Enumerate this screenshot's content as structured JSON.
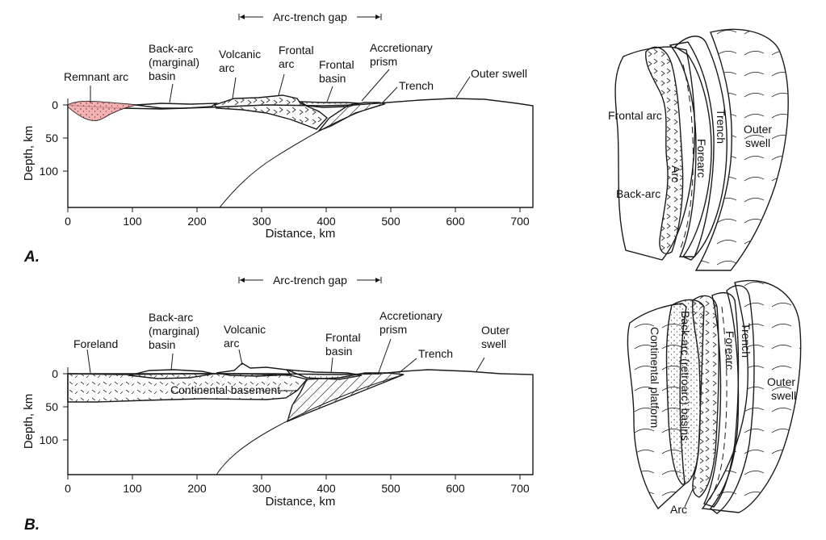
{
  "colors": {
    "mantle": "#1fcf2e",
    "arc": "#f2585e",
    "sediment": "#f5e84a",
    "wedge": "#f0a830",
    "remnant": "#f5a3a6",
    "basement": "#f08ae8",
    "backarc_plan": "#f5f06a",
    "outer_plan": "#b9f07a",
    "trench_plan": "#b87a32",
    "platform_plan": "#c9f25a"
  },
  "panelA": {
    "letter": "A.",
    "gap_label": "Arc-trench gap",
    "y_axis_title": "Depth, km",
    "x_axis_title": "Distance, km",
    "y_ticks": [
      "0",
      "50",
      "100"
    ],
    "x_ticks": [
      "0",
      "100",
      "200",
      "300",
      "400",
      "500",
      "600",
      "700"
    ],
    "labels": {
      "remnant": "Remnant arc",
      "backarc_1": "Back-arc",
      "backarc_2": "(marginal)",
      "backarc_3": "basin",
      "volcanic_1": "Volcanic",
      "volcanic_2": "arc",
      "frontal_arc_1": "Frontal",
      "frontal_arc_2": "arc",
      "frontal_basin_1": "Frontal",
      "frontal_basin_2": "basin",
      "accretionary_1": "Accretionary",
      "accretionary_2": "prism",
      "trench": "Trench",
      "outer_swell": "Outer swell"
    }
  },
  "panelB": {
    "letter": "B.",
    "gap_label": "Arc-trench gap",
    "y_axis_title": "Depth, km",
    "x_axis_title": "Distance, km",
    "y_ticks": [
      "0",
      "50",
      "100"
    ],
    "x_ticks": [
      "0",
      "100",
      "200",
      "300",
      "400",
      "500",
      "600",
      "700"
    ],
    "labels": {
      "foreland": "Foreland",
      "backarc_1": "Back-arc",
      "backarc_2": "(marginal)",
      "backarc_3": "basin",
      "volcanic_1": "Volcanic",
      "volcanic_2": "arc",
      "frontal_basin_1": "Frontal",
      "frontal_basin_2": "basin",
      "accretionary_1": "Accretionary",
      "accretionary_2": "prism",
      "trench": "Trench",
      "outer_swell_1": "Outer",
      "outer_swell_2": "swell",
      "basement": "Continental basement"
    }
  },
  "mapA": {
    "frontal_arc": "Frontal arc",
    "back_arc": "Back-arc",
    "arc": "Arc",
    "forearc": "Forearc",
    "trench": "Trench",
    "outer_1": "Outer",
    "outer_2": "swell"
  },
  "mapB": {
    "platform": "Continental platform",
    "backarc_basins": "Back-arc (retroarc) basins",
    "forearc": "Forearc",
    "trench": "Trench",
    "outer_1": "Outer",
    "outer_2": "swell",
    "arc": "Arc"
  }
}
